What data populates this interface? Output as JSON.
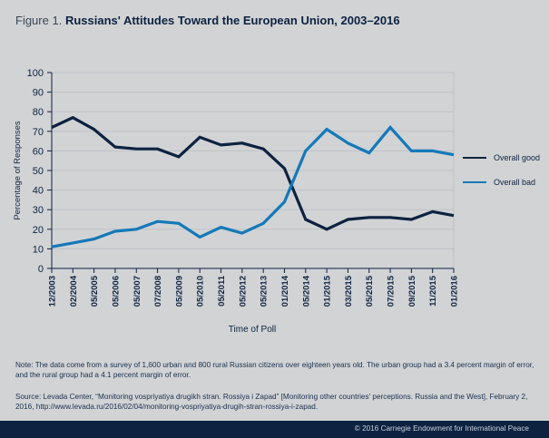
{
  "title": {
    "lead": "Figure 1.",
    "main": "Russians' Attitudes Toward the European Union, 2003–2016"
  },
  "chart_data": {
    "type": "line",
    "title": "Russians' Attitudes Toward the European Union, 2003–2016",
    "xlabel": "Time of Poll",
    "ylabel": "Percentage of Responses",
    "ylim": [
      0,
      100
    ],
    "yticks": [
      0,
      10,
      20,
      30,
      40,
      50,
      60,
      70,
      80,
      90,
      100
    ],
    "grid": true,
    "legend_position": "right",
    "categories": [
      "12/2003",
      "02/2004",
      "05/2005",
      "05/2006",
      "05/2007",
      "07/2008",
      "05/2009",
      "05/2010",
      "05/2011",
      "05/2012",
      "05/2013",
      "01/2014",
      "05/2014",
      "01/2015",
      "03/2015",
      "05/2015",
      "07/2015",
      "09/2015",
      "11/2015",
      "01/2016"
    ],
    "series": [
      {
        "name": "Overall good",
        "color": "#0d2240",
        "values": [
          72,
          77,
          71,
          62,
          61,
          61,
          57,
          67,
          63,
          64,
          61,
          51,
          25,
          20,
          25,
          26,
          26,
          25,
          29,
          27
        ]
      },
      {
        "name": "Overall bad",
        "color": "#1479b8",
        "values": [
          11,
          13,
          15,
          19,
          20,
          24,
          23,
          16,
          21,
          18,
          23,
          34,
          60,
          71,
          64,
          59,
          72,
          60,
          60,
          58
        ]
      }
    ]
  },
  "note": "Note: The data come from a survey of 1,600 urban and 800 rural Russian citizens over eighteen years old. The urban group had a 3.4 percent margin of error, and the rural group had a 4.1 percent margin of error.",
  "source": "Source: Levada Center, “Monitoring vospriyatiya drugikh stran. Rossiya i Zapad” [Monitoring other countries' perceptions. Russia and the West], February 2, 2016, http://www.levada.ru/2016/02/04/monitoring-vospriyatiya-drugih-stran-rossiya-i-zapad.",
  "footer": "© 2016 Carnegie Endowment for International Peace"
}
